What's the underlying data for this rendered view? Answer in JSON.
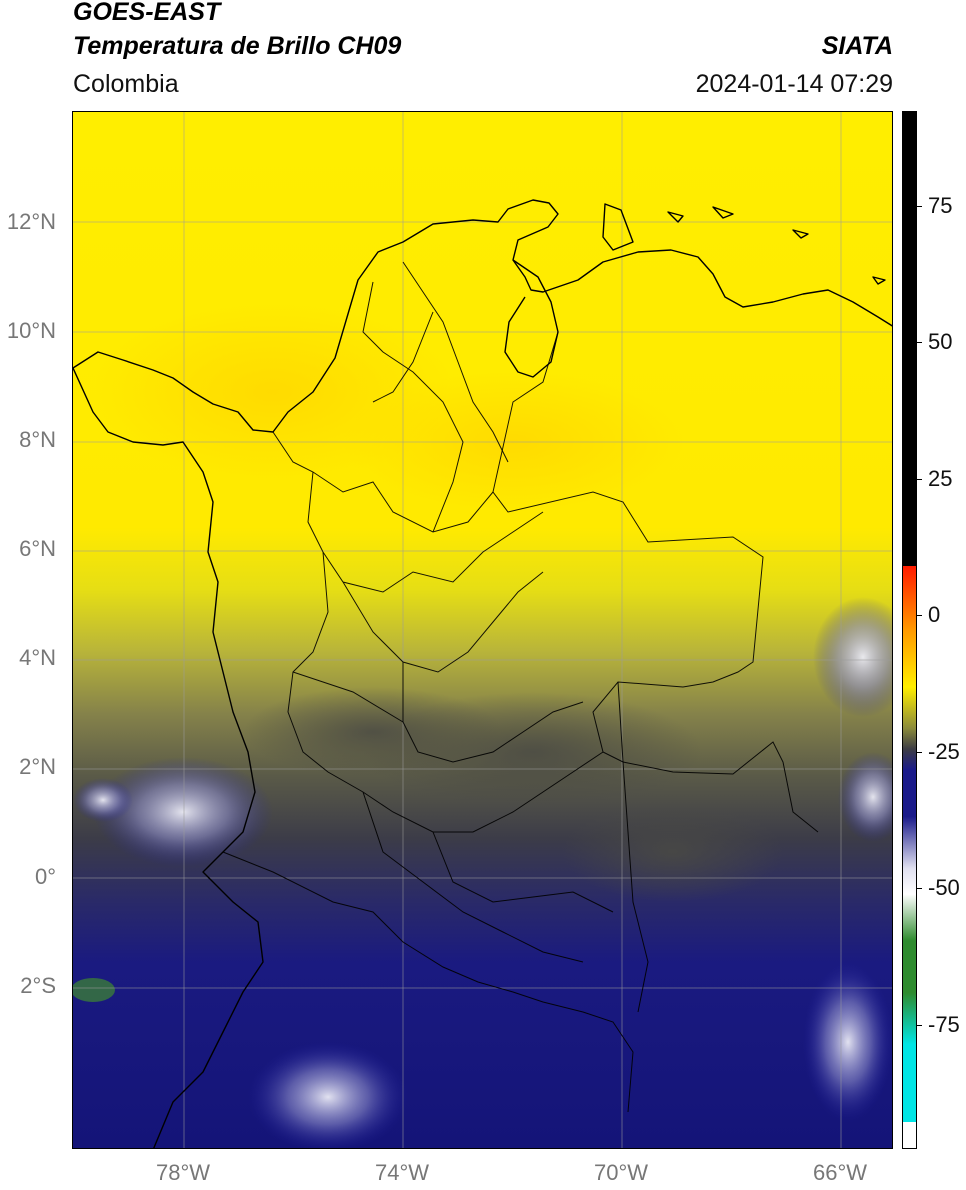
{
  "header": {
    "title_line1": "GOES-EAST",
    "title_line2": "Temperatura de Brillo CH09",
    "brand": "SIATA",
    "region": "Colombia",
    "datetime": "2024-01-14 07:29"
  },
  "map": {
    "latitude_labels": [
      "12°N",
      "10°N",
      "8°N",
      "6°N",
      "4°N",
      "2°N",
      "0°",
      "2°S"
    ],
    "longitude_labels": [
      "78°W",
      "74°W",
      "70°W",
      "66°W"
    ],
    "gridlines": true,
    "coastline_color": "#000000"
  },
  "colorbar": {
    "tick_labels": [
      "75",
      "50",
      "25",
      "0",
      "-25",
      "-50",
      "-75"
    ],
    "colors": {
      "black_top": "#000000",
      "red": "#ff1a00",
      "orange": "#ff9900",
      "yellow": "#ffee00",
      "olive": "#8a8a3a",
      "dark_gray": "#3c3c44",
      "navy": "#1a1a8a",
      "light": "#e0e0f0",
      "white": "#ffffff",
      "green": "#2e8b2e",
      "cyan": "#00e5e5"
    }
  }
}
